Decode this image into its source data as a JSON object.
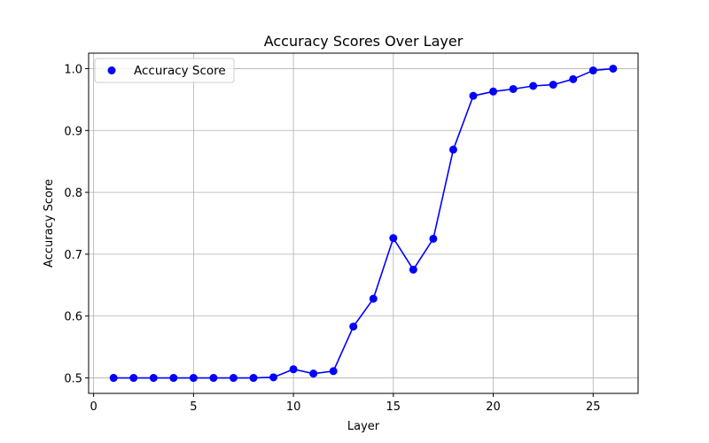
{
  "chart_data": {
    "type": "line",
    "title": "Accuracy Scores Over Layer",
    "xlabel": "Layer",
    "ylabel": "Accuracy Score",
    "xlim": [
      -0.25,
      27.25
    ],
    "ylim": [
      0.475,
      1.025
    ],
    "xticks": [
      0,
      5,
      10,
      15,
      20,
      25
    ],
    "yticks": [
      0.5,
      0.6,
      0.7,
      0.8,
      0.9,
      1.0
    ],
    "xtick_labels": [
      "0",
      "5",
      "10",
      "15",
      "20",
      "25"
    ],
    "ytick_labels": [
      "0.5",
      "0.6",
      "0.7",
      "0.8",
      "0.9",
      "1.0"
    ],
    "grid": true,
    "legend_position": "top-left",
    "series": [
      {
        "name": "Accuracy Score",
        "color": "#0000ff",
        "marker": "circle",
        "x": [
          1,
          2,
          3,
          4,
          5,
          6,
          7,
          8,
          9,
          10,
          11,
          12,
          13,
          14,
          15,
          16,
          17,
          18,
          19,
          20,
          21,
          22,
          23,
          24,
          25,
          26
        ],
        "y": [
          0.5,
          0.5,
          0.5,
          0.5,
          0.5,
          0.5,
          0.5,
          0.5,
          0.501,
          0.514,
          0.507,
          0.511,
          0.583,
          0.628,
          0.726,
          0.675,
          0.725,
          0.869,
          0.956,
          0.963,
          0.967,
          0.972,
          0.974,
          0.983,
          0.997,
          1.0
        ]
      }
    ]
  }
}
